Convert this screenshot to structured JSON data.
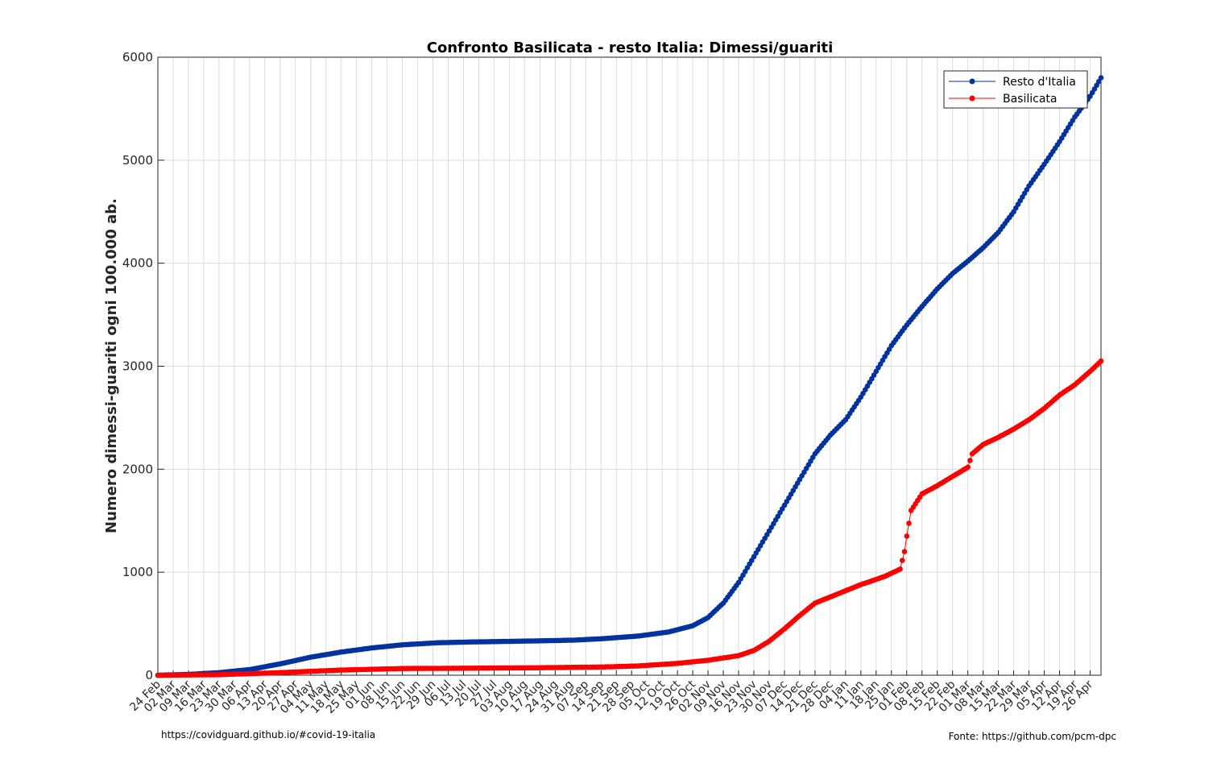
{
  "chart_data": {
    "type": "line",
    "title": "Confronto Basilicata - resto Italia: Dimessi/guariti",
    "xlabel": "",
    "ylabel": "Numero dimessi-guariti ogni 100.000 ab.",
    "ylim": [
      0,
      6000
    ],
    "yticks": [
      0,
      1000,
      2000,
      3000,
      4000,
      5000,
      6000
    ],
    "ytick_labels": [
      "0",
      "1000",
      "2000",
      "3000",
      "4000",
      "5000",
      "6000"
    ],
    "x_range": [
      "2020-02-24",
      "2021-05-01"
    ],
    "xtick_labels": [
      "24 Feb",
      "02 Mar",
      "09 Mar",
      "16 Mar",
      "23 Mar",
      "30 Mar",
      "06 Apr",
      "13 Apr",
      "20 Apr",
      "27 Apr",
      "04 May",
      "11 May",
      "18 May",
      "25 May",
      "01 Jun",
      "08 Jun",
      "15 Jun",
      "22 Jun",
      "29 Jun",
      "06 Jul",
      "13 Jul",
      "20 Jul",
      "27 Jul",
      "03 Aug",
      "10 Aug",
      "17 Aug",
      "24 Aug",
      "31 Aug",
      "07 Sep",
      "14 Sep",
      "21 Sep",
      "28 Sep",
      "05 Oct",
      "12 Oct",
      "19 Oct",
      "26 Oct",
      "02 Nov",
      "09 Nov",
      "16 Nov",
      "23 Nov",
      "30 Nov",
      "07 Dec",
      "14 Dec",
      "21 Dec",
      "28 Dec",
      "04 Jan",
      "11 Jan",
      "18 Jan",
      "25 Jan",
      "01 Feb",
      "08 Feb",
      "15 Feb",
      "22 Feb",
      "01 Mar",
      "08 Mar",
      "15 Mar",
      "22 Mar",
      "29 Mar",
      "05 Apr",
      "12 Apr",
      "19 Apr",
      "26 Apr"
    ],
    "grid": true,
    "legend_position": "top-right",
    "series": [
      {
        "name": "Resto d'Italia",
        "color": "#0033a0",
        "points": [
          [
            "2020-02-24",
            0
          ],
          [
            "2020-03-09",
            8
          ],
          [
            "2020-03-23",
            25
          ],
          [
            "2020-04-06",
            55
          ],
          [
            "2020-04-20",
            110
          ],
          [
            "2020-05-04",
            175
          ],
          [
            "2020-05-18",
            225
          ],
          [
            "2020-06-01",
            265
          ],
          [
            "2020-06-15",
            295
          ],
          [
            "2020-07-01",
            315
          ],
          [
            "2020-07-15",
            322
          ],
          [
            "2020-08-01",
            328
          ],
          [
            "2020-08-15",
            333
          ],
          [
            "2020-09-01",
            340
          ],
          [
            "2020-09-15",
            355
          ],
          [
            "2020-10-01",
            380
          ],
          [
            "2020-10-15",
            420
          ],
          [
            "2020-10-26",
            480
          ],
          [
            "2020-11-02",
            560
          ],
          [
            "2020-11-09",
            700
          ],
          [
            "2020-11-16",
            900
          ],
          [
            "2020-11-23",
            1150
          ],
          [
            "2020-11-30",
            1400
          ],
          [
            "2020-12-07",
            1650
          ],
          [
            "2020-12-14",
            1900
          ],
          [
            "2020-12-21",
            2150
          ],
          [
            "2020-12-28",
            2330
          ],
          [
            "2021-01-04",
            2480
          ],
          [
            "2021-01-11",
            2700
          ],
          [
            "2021-01-18",
            2950
          ],
          [
            "2021-01-25",
            3200
          ],
          [
            "2021-02-01",
            3400
          ],
          [
            "2021-02-08",
            3580
          ],
          [
            "2021-02-15",
            3750
          ],
          [
            "2021-02-22",
            3900
          ],
          [
            "2021-03-01",
            4020
          ],
          [
            "2021-03-08",
            4150
          ],
          [
            "2021-03-15",
            4300
          ],
          [
            "2021-03-22",
            4500
          ],
          [
            "2021-03-29",
            4750
          ],
          [
            "2021-04-05",
            4960
          ],
          [
            "2021-04-12",
            5180
          ],
          [
            "2021-04-19",
            5420
          ],
          [
            "2021-04-26",
            5620
          ],
          [
            "2021-05-01",
            5800
          ]
        ]
      },
      {
        "name": "Basilicata",
        "color": "#ff0000",
        "points": [
          [
            "2020-02-24",
            0
          ],
          [
            "2020-03-23",
            5
          ],
          [
            "2020-04-20",
            25
          ],
          [
            "2020-05-18",
            50
          ],
          [
            "2020-06-15",
            65
          ],
          [
            "2020-07-15",
            68
          ],
          [
            "2020-08-15",
            72
          ],
          [
            "2020-09-15",
            80
          ],
          [
            "2020-10-01",
            90
          ],
          [
            "2020-10-19",
            115
          ],
          [
            "2020-11-02",
            145
          ],
          [
            "2020-11-16",
            190
          ],
          [
            "2020-11-23",
            240
          ],
          [
            "2020-11-30",
            330
          ],
          [
            "2020-12-07",
            450
          ],
          [
            "2020-12-14",
            580
          ],
          [
            "2020-12-21",
            700
          ],
          [
            "2020-12-28",
            760
          ],
          [
            "2021-01-04",
            820
          ],
          [
            "2021-01-11",
            880
          ],
          [
            "2021-01-18",
            930
          ],
          [
            "2021-01-22",
            960
          ],
          [
            "2021-01-26",
            1000
          ],
          [
            "2021-01-29",
            1030
          ],
          [
            "2021-01-31",
            1200
          ],
          [
            "2021-02-01",
            1350
          ],
          [
            "2021-02-03",
            1600
          ],
          [
            "2021-02-08",
            1760
          ],
          [
            "2021-02-15",
            1840
          ],
          [
            "2021-02-22",
            1930
          ],
          [
            "2021-02-26",
            1980
          ],
          [
            "2021-03-01",
            2020
          ],
          [
            "2021-03-03",
            2150
          ],
          [
            "2021-03-08",
            2240
          ],
          [
            "2021-03-15",
            2310
          ],
          [
            "2021-03-22",
            2390
          ],
          [
            "2021-03-29",
            2480
          ],
          [
            "2021-04-05",
            2590
          ],
          [
            "2021-04-12",
            2720
          ],
          [
            "2021-04-19",
            2820
          ],
          [
            "2021-04-26",
            2950
          ],
          [
            "2021-05-01",
            3050
          ]
        ]
      }
    ]
  },
  "footer": {
    "left": "https://covidguard.github.io/#covid-19-italia",
    "right": "Fonte: https://github.com/pcm-dpc"
  }
}
